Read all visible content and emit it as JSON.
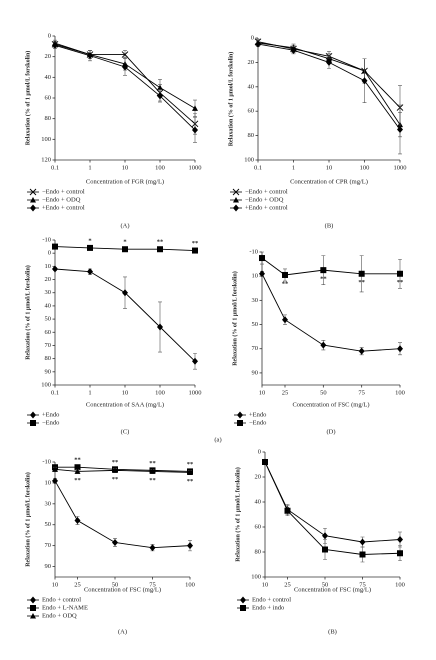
{
  "chart_data": [
    {
      "type": "line",
      "x_label": "Concentration of FGR (mg/L)",
      "y_label": "Relaxation (% of 1 μmol/L forskolin)",
      "caption": "(A)",
      "x_scale": "log",
      "x": [
        0.1,
        1,
        10,
        100,
        1000
      ],
      "xlim": [
        0.1,
        1000
      ],
      "xticks": [
        0.1,
        1,
        10,
        100,
        1000
      ],
      "ylim": [
        0,
        120
      ],
      "y_inverted": true,
      "yticks": [
        0,
        20,
        40,
        60,
        80,
        100,
        120
      ],
      "series": [
        {
          "name": "−Endo + control",
          "marker": "x",
          "color": "#000",
          "values": [
            8,
            18,
            18,
            55,
            85
          ],
          "errors": [
            3,
            4,
            4,
            8,
            10
          ]
        },
        {
          "name": "−Endo + ODQ",
          "marker": "triangle",
          "color": "#000",
          "values": [
            7,
            18,
            27,
            50,
            70
          ],
          "errors": [
            3,
            4,
            6,
            8,
            8
          ]
        },
        {
          "name": "+Endo + control",
          "marker": "diamond",
          "color": "#000",
          "values": [
            9,
            19,
            30,
            58,
            91
          ],
          "errors": [
            3,
            5,
            8,
            6,
            12
          ]
        }
      ]
    },
    {
      "type": "line",
      "x_label": "Concentration of CPR (mg/L)",
      "y_label": "Relaxation (% of 1 μmol/L forskolin)",
      "caption": "(B)",
      "x_scale": "log",
      "x": [
        0.1,
        1,
        10,
        100,
        1000
      ],
      "xlim": [
        0.1,
        1000
      ],
      "xticks": [
        0.1,
        1,
        10,
        100,
        1000
      ],
      "ylim": [
        0,
        100
      ],
      "y_inverted": true,
      "yticks": [
        0,
        20,
        40,
        60,
        80,
        100
      ],
      "series": [
        {
          "name": "−Endo + control",
          "marker": "x",
          "color": "#000",
          "values": [
            3,
            9,
            15,
            27,
            57
          ],
          "errors": [
            2,
            3,
            4,
            10,
            18
          ]
        },
        {
          "name": "−Endo + ODQ",
          "marker": "triangle",
          "color": "#000",
          "values": [
            4,
            8,
            17,
            27,
            71
          ],
          "errors": [
            2,
            3,
            4,
            10,
            10
          ]
        },
        {
          "name": "+Endo + control",
          "marker": "diamond",
          "color": "#000",
          "values": [
            5,
            10,
            20,
            35,
            75
          ],
          "errors": [
            2,
            3,
            5,
            18,
            20
          ]
        }
      ]
    },
    {
      "type": "line",
      "x_label": "Concentration of SAA (mg/L)",
      "y_label": "Relaxation (% of 1 μmol/L forskolin)",
      "caption": "(C)",
      "x_scale": "log",
      "x": [
        0.1,
        1,
        10,
        100,
        1000
      ],
      "xlim": [
        0.1,
        1000
      ],
      "xticks": [
        0.1,
        1,
        10,
        100,
        1000
      ],
      "ylim": [
        -10,
        100
      ],
      "y_inverted": true,
      "yticks": [
        -10,
        0,
        10,
        20,
        30,
        40,
        50,
        60,
        70,
        80,
        90,
        100
      ],
      "series": [
        {
          "name": "+Endo",
          "marker": "diamond",
          "color": "#000",
          "values": [
            12,
            14,
            30,
            56,
            82
          ],
          "errors": [
            1,
            2,
            12,
            19,
            6
          ]
        },
        {
          "name": "−Endo",
          "marker": "square",
          "color": "#000",
          "values": [
            -5,
            -4,
            -3,
            -3,
            -2
          ],
          "errors": [
            1,
            1,
            1,
            1,
            1
          ],
          "significance": [
            null,
            "*",
            "*",
            "**",
            "**"
          ],
          "significance_position": "above"
        }
      ]
    },
    {
      "type": "line",
      "x_label": "Concentration of FSC (mg/L)",
      "y_label": "Relaxation (% of 1 μmol/L forskolin)",
      "caption": "(D)",
      "x_scale": "linear",
      "x": [
        10,
        25,
        50,
        75,
        100
      ],
      "xlim": [
        10,
        100
      ],
      "xticks": [
        10,
        25,
        50,
        75,
        100
      ],
      "ylim": [
        -10,
        100
      ],
      "y_inverted": true,
      "yticks": [
        -10,
        10,
        30,
        50,
        70,
        90
      ],
      "series": [
        {
          "name": "+Endo",
          "marker": "diamond",
          "color": "#000",
          "values": [
            8,
            46,
            67,
            72,
            70
          ],
          "errors": [
            2,
            4,
            4,
            3,
            5
          ]
        },
        {
          "name": "−Endo",
          "marker": "square",
          "color": "#000",
          "values": [
            -5,
            9,
            5,
            8,
            8
          ],
          "errors": [
            5,
            5,
            12,
            15,
            12
          ],
          "significance": [
            null,
            "**",
            "**",
            "**",
            "**"
          ],
          "significance_position": "below"
        }
      ]
    },
    {
      "type": "line",
      "x_label": "Concentration of FSC (mg/L)",
      "y_label": "Relaxation (% of 1 μmol/L forskolin)",
      "caption": "(A)",
      "x_scale": "linear",
      "x": [
        10,
        25,
        50,
        75,
        100
      ],
      "xlim": [
        10,
        100
      ],
      "xticks": [
        10,
        25,
        50,
        75,
        100
      ],
      "ylim": [
        -10,
        100
      ],
      "y_inverted": true,
      "yticks": [
        -10,
        10,
        30,
        50,
        70,
        90
      ],
      "series": [
        {
          "name": "Endo + control",
          "marker": "diamond",
          "color": "#000",
          "values": [
            8,
            46,
            67,
            72,
            70
          ],
          "errors": [
            2,
            4,
            4,
            3,
            5
          ]
        },
        {
          "name": "Endo + L-NAME",
          "marker": "square",
          "color": "#000",
          "values": [
            -5,
            -5,
            -3,
            -2,
            -1
          ],
          "errors": [
            2,
            2,
            2,
            2,
            2
          ],
          "significance": [
            null,
            "**",
            "**",
            "**",
            "**"
          ],
          "significance_position": "above"
        },
        {
          "name": "Endo + ODQ",
          "marker": "triangle",
          "color": "#000",
          "values": [
            -3,
            -1,
            -2,
            -1,
            0
          ],
          "errors": [
            2,
            2,
            2,
            2,
            2
          ],
          "significance": [
            null,
            "**",
            "**",
            "**",
            "**"
          ],
          "significance_position": "below"
        }
      ]
    },
    {
      "type": "line",
      "x_label": "Concentration of FSC (mg/L)",
      "y_label": "Relaxation (% of 1 μmol/L forskolin)",
      "caption": "(B)",
      "x_scale": "linear",
      "x": [
        10,
        25,
        50,
        75,
        100
      ],
      "xlim": [
        10,
        100
      ],
      "xticks": [
        10,
        25,
        50,
        75,
        100
      ],
      "ylim": [
        0,
        100
      ],
      "y_inverted": true,
      "yticks": [
        0,
        20,
        40,
        60,
        80,
        100
      ],
      "series": [
        {
          "name": "Endo + control",
          "marker": "diamond",
          "color": "#000",
          "values": [
            8,
            46,
            67,
            72,
            70
          ],
          "errors": [
            2,
            4,
            6,
            4,
            6
          ]
        },
        {
          "name": "Endo + indo",
          "marker": "square",
          "color": "#000",
          "values": [
            8,
            47,
            78,
            82,
            81
          ],
          "errors": [
            2,
            4,
            8,
            6,
            6
          ]
        }
      ]
    }
  ],
  "figure_label": "(a)"
}
